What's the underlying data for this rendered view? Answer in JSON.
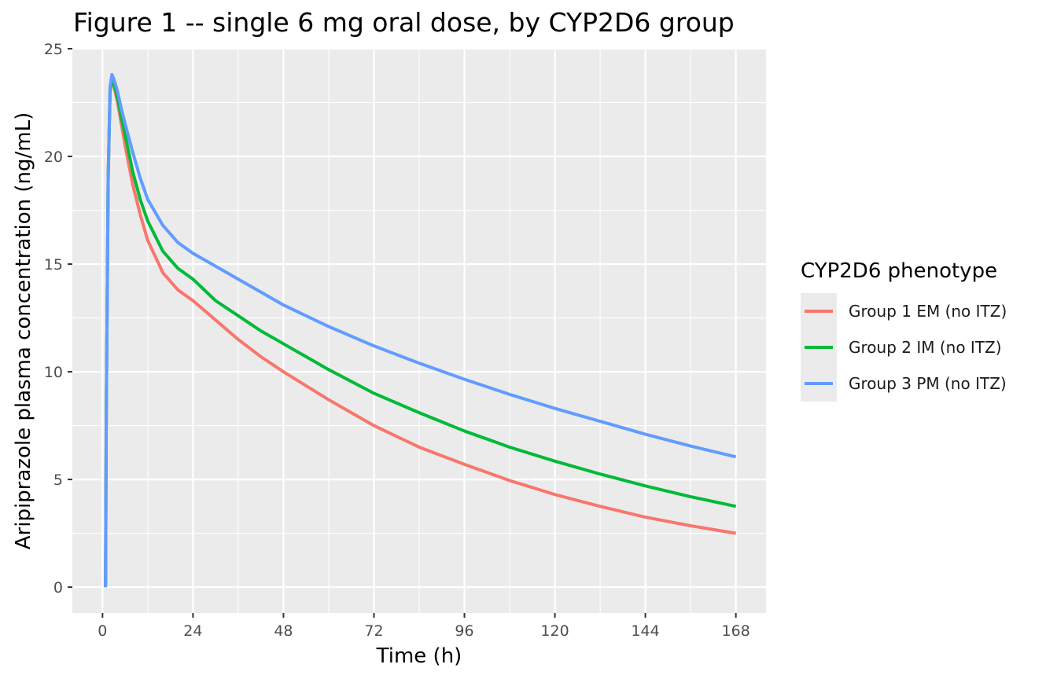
{
  "chart_data": {
    "type": "line",
    "title": "Figure 1 -- single 6 mg oral dose, by CYP2D6 group",
    "xlabel": "Time (h)",
    "ylabel": "Aripiprazole plasma concentration (ng/mL)",
    "xlim": [
      -8,
      176
    ],
    "ylim": [
      -1.2,
      25
    ],
    "x_ticks": [
      0,
      24,
      48,
      72,
      96,
      120,
      144,
      168
    ],
    "y_ticks": [
      0,
      5,
      10,
      15,
      20,
      25
    ],
    "x_tick_labels": [
      "0",
      "24",
      "48",
      "72",
      "96",
      "120",
      "144",
      "168"
    ],
    "y_tick_labels": [
      "0",
      "5",
      "10",
      "15",
      "20",
      "25"
    ],
    "grid": true,
    "legend": {
      "title": "CYP2D6 phenotype",
      "position": "right"
    },
    "series": [
      {
        "name": "Group 1 EM (no ITZ)",
        "color": "#F8766D",
        "x": [
          0.8,
          1.0,
          1.5,
          2.0,
          2.5,
          3,
          4,
          5,
          6,
          8,
          10,
          12,
          16,
          20,
          24,
          30,
          36,
          42,
          48,
          60,
          72,
          84,
          96,
          108,
          120,
          132,
          144,
          156,
          168
        ],
        "y": [
          0,
          8.0,
          19.0,
          23.0,
          23.6,
          23.3,
          22.5,
          21.5,
          20.5,
          18.7,
          17.3,
          16.1,
          14.6,
          13.8,
          13.3,
          12.4,
          11.5,
          10.7,
          10.0,
          8.7,
          7.5,
          6.5,
          5.7,
          4.95,
          4.3,
          3.75,
          3.25,
          2.85,
          2.5
        ]
      },
      {
        "name": "Group 2 IM (no ITZ)",
        "color": "#00BA38",
        "x": [
          0.8,
          1.0,
          1.5,
          2.0,
          2.5,
          3,
          4,
          5,
          6,
          8,
          10,
          12,
          16,
          20,
          24,
          30,
          36,
          42,
          48,
          60,
          72,
          84,
          96,
          108,
          120,
          132,
          144,
          156,
          168
        ],
        "y": [
          0,
          8.0,
          19.0,
          23.0,
          23.7,
          23.4,
          22.7,
          21.8,
          21.0,
          19.3,
          18.0,
          17.0,
          15.6,
          14.8,
          14.3,
          13.3,
          12.6,
          11.9,
          11.3,
          10.1,
          9.0,
          8.1,
          7.25,
          6.5,
          5.85,
          5.25,
          4.7,
          4.2,
          3.75
        ]
      },
      {
        "name": "Group 3 PM (no ITZ)",
        "color": "#619CFF",
        "x": [
          0.8,
          1.0,
          1.5,
          2.0,
          2.5,
          3,
          4,
          5,
          6,
          8,
          10,
          12,
          16,
          20,
          24,
          30,
          36,
          42,
          48,
          60,
          72,
          84,
          96,
          108,
          120,
          132,
          144,
          156,
          168
        ],
        "y": [
          0,
          8.0,
          19.0,
          23.2,
          23.8,
          23.6,
          23.0,
          22.2,
          21.5,
          20.2,
          19.0,
          18.0,
          16.8,
          16.0,
          15.5,
          14.9,
          14.3,
          13.7,
          13.1,
          12.1,
          11.2,
          10.4,
          9.65,
          8.95,
          8.3,
          7.7,
          7.1,
          6.55,
          6.05
        ]
      }
    ]
  }
}
